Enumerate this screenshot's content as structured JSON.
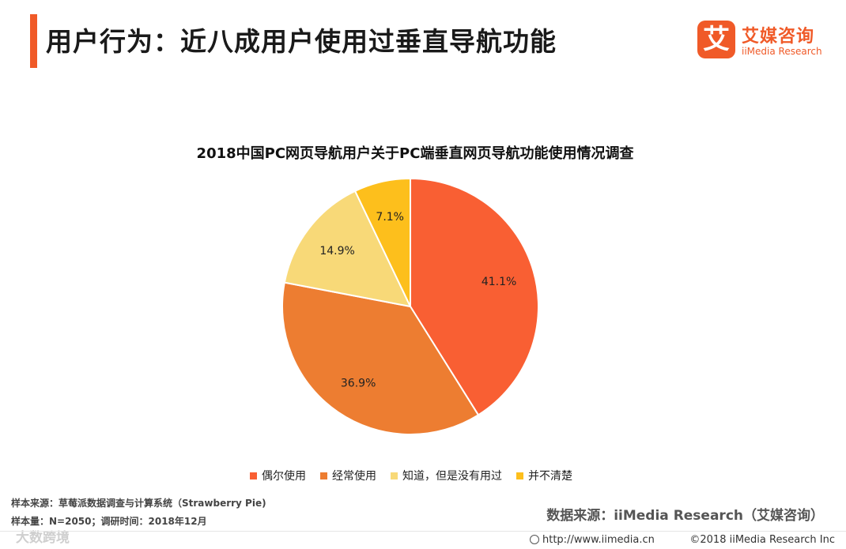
{
  "header": {
    "title": "用户行为：近八成用户使用过垂直导航功能",
    "accent_color": "#f05a28"
  },
  "logo": {
    "mark": "艾",
    "name_cn": "艾媒咨询",
    "name_en": "iiMedia Research",
    "icon": "iimedia-logo-icon"
  },
  "chart_data": {
    "type": "pie",
    "title": "2018中国PC网页导航用户关于PC端垂直网页导航功能使用情况调查",
    "categories": [
      "偶尔使用",
      "经常使用",
      "知道，但是没有用过",
      "并不清楚"
    ],
    "values": [
      41.1,
      36.9,
      14.9,
      7.1
    ],
    "labels": [
      "41.1%",
      "36.9%",
      "14.9%",
      "7.1%"
    ],
    "colors": [
      "#f95f33",
      "#ed7d31",
      "#f8d978",
      "#fdbf1c"
    ],
    "legend_position": "bottom",
    "start_angle": "12 o'clock",
    "direction": "clockwise"
  },
  "source": {
    "sample_source": "样本来源：草莓派数据调查与计算系统（Strawberry Pie)",
    "sample_size": "样本量：N=2050；调研时间：2018年12月",
    "data_source": "数据来源：iiMedia Research（艾媒咨询）"
  },
  "watermark": "大数跨境",
  "footer": {
    "url": "http://www.iimedia.cn",
    "copyright": "©2018  iiMedia Research  Inc"
  }
}
